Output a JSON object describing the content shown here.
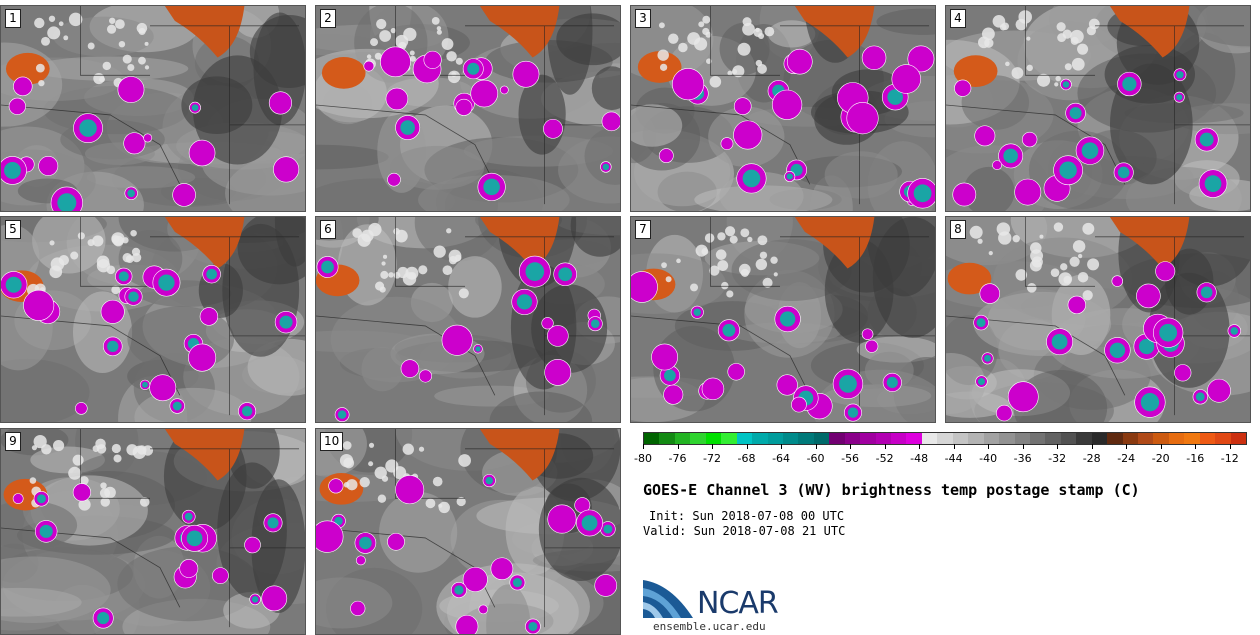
{
  "panels": [
    {
      "label": "1"
    },
    {
      "label": "2"
    },
    {
      "label": "3"
    },
    {
      "label": "4"
    },
    {
      "label": "5"
    },
    {
      "label": "6"
    },
    {
      "label": "7"
    },
    {
      "label": "8"
    },
    {
      "label": "9"
    },
    {
      "label": "10"
    }
  ],
  "colorbar": {
    "colors": [
      "#006400",
      "#138a13",
      "#22b322",
      "#2fd42f",
      "#00e000",
      "#33ee33",
      "#00c4c4",
      "#00aaaa",
      "#009c9c",
      "#008b8b",
      "#007a7a",
      "#006a6a",
      "#720072",
      "#8a008a",
      "#a000a0",
      "#b200b2",
      "#c600c6",
      "#dd00dd",
      "#e8e8e8",
      "#d6d6d6",
      "#c4c4c4",
      "#b3b3b3",
      "#a2a2a2",
      "#929292",
      "#828282",
      "#727272",
      "#626262",
      "#525252",
      "#3a3a3a",
      "#2a2a2a",
      "#602a10",
      "#8a3a10",
      "#b04a18",
      "#cc5a10",
      "#e66c10",
      "#f07810",
      "#ee5a14",
      "#e04814",
      "#cc3010"
    ],
    "tick_values": [
      "-80",
      "-76",
      "-72",
      "-68",
      "-64",
      "-60",
      "-56",
      "-52",
      "-48",
      "-44",
      "-40",
      "-36",
      "-32",
      "-28",
      "-24",
      "-20",
      "-16",
      "-12"
    ],
    "min": -80,
    "max": -10
  },
  "title": "GOES-E Channel 3 (WV) brightness temp postage stamp (C)",
  "init": "Init: Sun 2018-07-08 00 UTC",
  "valid": "Valid: Sun 2018-07-08 21 UTC",
  "logo": {
    "brand": "NCAR",
    "url": "ensemble.ucar.edu"
  }
}
